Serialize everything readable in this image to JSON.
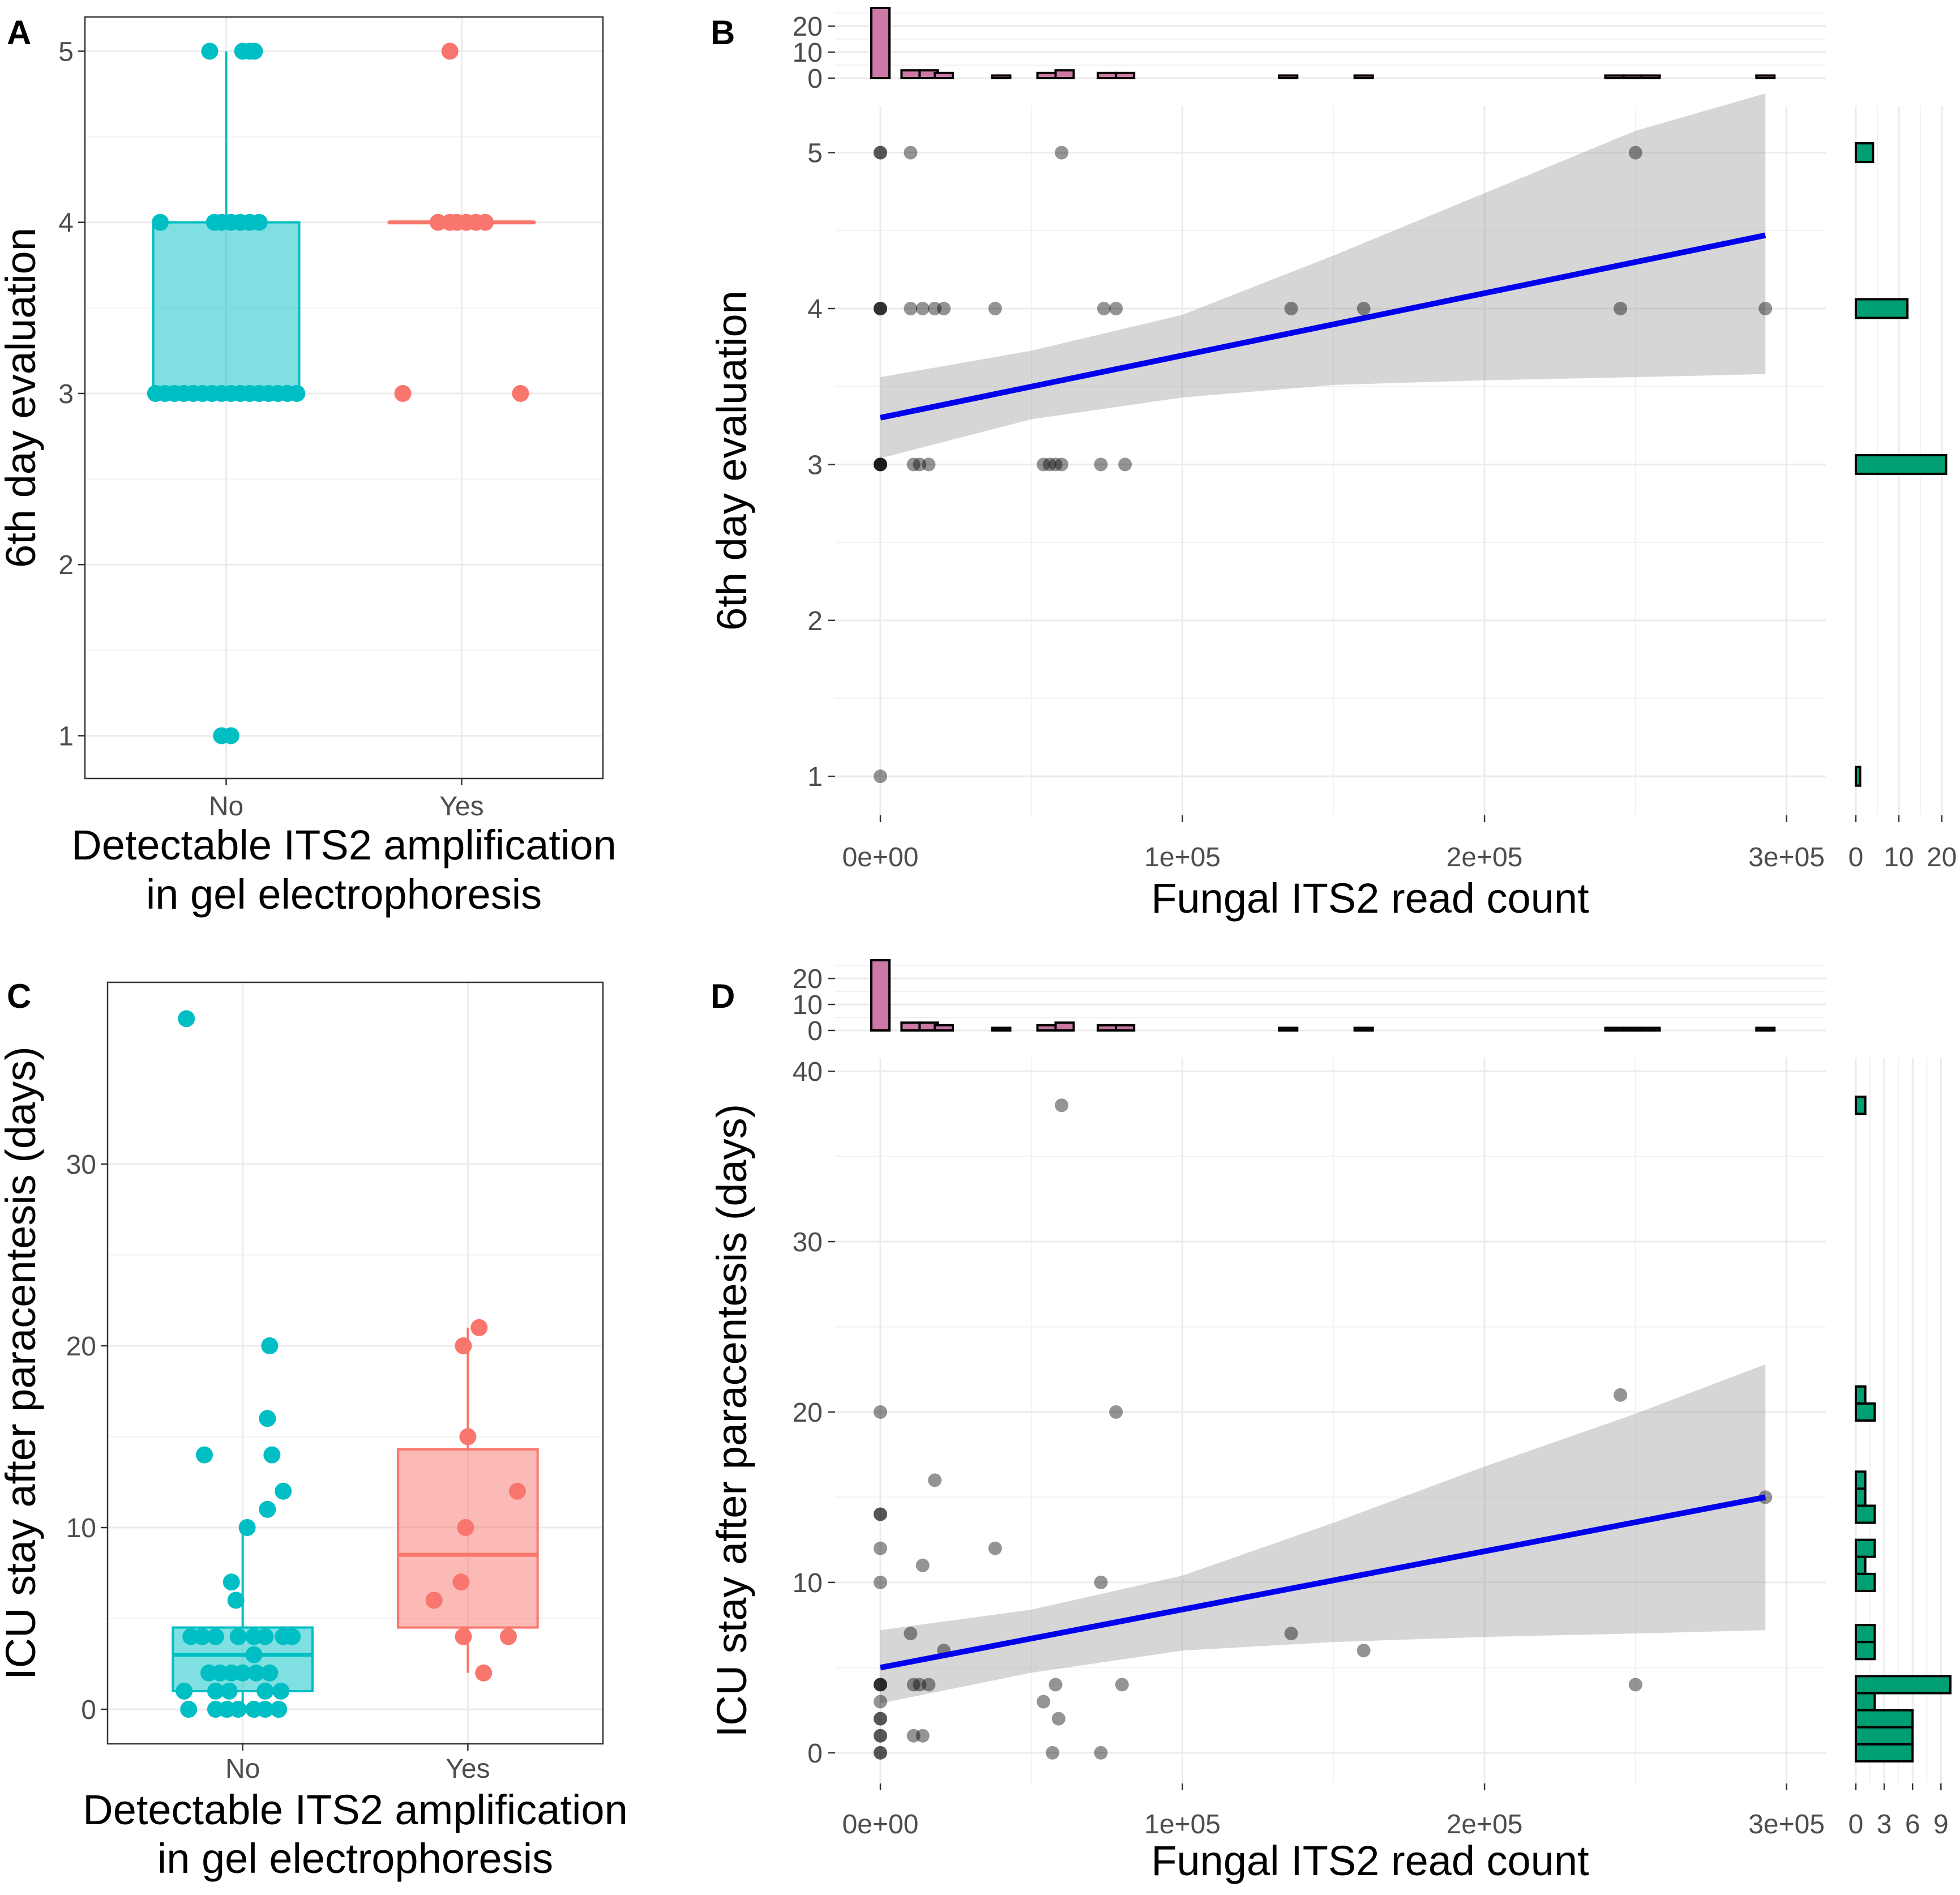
{
  "chart_data": [
    {
      "panel": "A",
      "type": "box",
      "xlabel": "Detectable ITS2 amplification\nin gel electrophoresis",
      "ylabel": "6th day evaluation",
      "categories": [
        "No",
        "Yes"
      ],
      "ylim": [
        0.75,
        5.2
      ],
      "yticks": [
        1,
        2,
        3,
        4,
        5
      ],
      "colors": {
        "No": "#00BFC4",
        "Yes": "#F8766D"
      },
      "boxes": [
        {
          "group": "No",
          "lower_whisker": 3,
          "q1": 3,
          "median": 3,
          "q3": 4,
          "upper_whisker": 5
        },
        {
          "group": "Yes",
          "lower_whisker": 4,
          "q1": 4,
          "median": 4,
          "q3": 4,
          "upper_whisker": 4
        }
      ],
      "points": [
        {
          "group": "No",
          "jitter": [
            -0.07,
            0.07,
            0.1,
            0.12
          ],
          "y": 5
        },
        {
          "group": "No",
          "jitter": [
            -0.28,
            -0.05,
            -0.02,
            0.02,
            0.06,
            0.1,
            0.14
          ],
          "y": 4
        },
        {
          "group": "No",
          "jitter": [
            -0.3,
            -0.26,
            -0.22,
            -0.18,
            -0.14,
            -0.1,
            -0.06,
            -0.02,
            0.02,
            0.06,
            0.1,
            0.14,
            0.18,
            0.22,
            0.26,
            0.3
          ],
          "y": 3
        },
        {
          "group": "No",
          "jitter": [
            -0.02,
            0.02
          ],
          "y": 1
        },
        {
          "group": "Yes",
          "jitter": [
            -0.05
          ],
          "y": 5
        },
        {
          "group": "Yes",
          "jitter": [
            -0.1,
            -0.05,
            -0.02,
            0.02,
            0.06,
            0.1
          ],
          "y": 4
        },
        {
          "group": "Yes",
          "jitter": [
            -0.25,
            0.25
          ],
          "y": 3
        }
      ]
    },
    {
      "panel": "B",
      "type": "scatter",
      "xlabel": "Fungal ITS2 read count",
      "ylabel": "6th day evaluation",
      "xlim": [
        -15000,
        313000
      ],
      "ylim": [
        0.75,
        5.3
      ],
      "xticks": [
        0,
        100000,
        200000,
        300000
      ],
      "xtick_labels": [
        "0e+00",
        "1e+05",
        "2e+05",
        "3e+05"
      ],
      "yticks": [
        1,
        2,
        3,
        4,
        5
      ],
      "points": [
        {
          "x": 0,
          "y": 5
        },
        {
          "x": 0,
          "y": 5
        },
        {
          "x": 10000,
          "y": 5
        },
        {
          "x": 60000,
          "y": 5
        },
        {
          "x": 250000,
          "y": 5
        },
        {
          "x": 0,
          "y": 4
        },
        {
          "x": 0,
          "y": 4
        },
        {
          "x": 0,
          "y": 4
        },
        {
          "x": 10000,
          "y": 4
        },
        {
          "x": 14000,
          "y": 4
        },
        {
          "x": 18000,
          "y": 4
        },
        {
          "x": 21000,
          "y": 4
        },
        {
          "x": 38000,
          "y": 4
        },
        {
          "x": 74000,
          "y": 4
        },
        {
          "x": 78000,
          "y": 4
        },
        {
          "x": 136000,
          "y": 4
        },
        {
          "x": 160000,
          "y": 4
        },
        {
          "x": 245000,
          "y": 4
        },
        {
          "x": 293000,
          "y": 4
        },
        {
          "x": 0,
          "y": 3
        },
        {
          "x": 0,
          "y": 3
        },
        {
          "x": 0,
          "y": 3
        },
        {
          "x": 0,
          "y": 3
        },
        {
          "x": 11000,
          "y": 3
        },
        {
          "x": 13000,
          "y": 3
        },
        {
          "x": 16000,
          "y": 3
        },
        {
          "x": 54000,
          "y": 3
        },
        {
          "x": 56000,
          "y": 3
        },
        {
          "x": 58000,
          "y": 3
        },
        {
          "x": 60000,
          "y": 3
        },
        {
          "x": 73000,
          "y": 3
        },
        {
          "x": 81000,
          "y": 3
        },
        {
          "x": 0,
          "y": 1
        }
      ],
      "fit": {
        "x": [
          0,
          293000
        ],
        "y": [
          3.3,
          4.47
        ],
        "color": "#0000EE"
      },
      "ci_band": {
        "x": [
          0,
          50000,
          100000,
          150000,
          200000,
          250000,
          293000
        ],
        "upper": [
          3.56,
          3.73,
          3.96,
          4.34,
          4.74,
          5.14,
          5.38
        ],
        "lower": [
          3.04,
          3.29,
          3.43,
          3.51,
          3.54,
          3.56,
          3.58
        ]
      },
      "top_histogram": {
        "color": "#CC79A7",
        "bins": [
          {
            "x": 0,
            "count": 27
          },
          {
            "x": 10000,
            "count": 3
          },
          {
            "x": 16000,
            "count": 3
          },
          {
            "x": 21000,
            "count": 2
          },
          {
            "x": 40000,
            "count": 1
          },
          {
            "x": 55000,
            "count": 2
          },
          {
            "x": 61000,
            "count": 3
          },
          {
            "x": 75000,
            "count": 2
          },
          {
            "x": 81000,
            "count": 2
          },
          {
            "x": 135000,
            "count": 1
          },
          {
            "x": 160000,
            "count": 1
          },
          {
            "x": 243000,
            "count": 1
          },
          {
            "x": 249000,
            "count": 1
          },
          {
            "x": 255000,
            "count": 1
          },
          {
            "x": 293000,
            "count": 1
          }
        ],
        "bin_width": 6000,
        "yticks": [
          0,
          10,
          20
        ],
        "ymax": 27
      },
      "right_histogram": {
        "color": "#009E73",
        "bins": [
          {
            "y": 5,
            "count": 4
          },
          {
            "y": 4,
            "count": 12
          },
          {
            "y": 3,
            "count": 21
          },
          {
            "y": 1,
            "count": 1
          }
        ],
        "bin_height": 0.12,
        "xticks": [
          0,
          10,
          20
        ],
        "xtick_labels": [
          "0",
          "10",
          "20"
        ],
        "xmax": 22
      }
    },
    {
      "panel": "C",
      "type": "box",
      "xlabel": "Detectable ITS2 amplification\nin gel electrophoresis",
      "ylabel": "ICU stay after paracentesis (days)",
      "categories": [
        "No",
        "Yes"
      ],
      "ylim": [
        -1.9,
        40
      ],
      "yticks": [
        0,
        10,
        20,
        30
      ],
      "colors": {
        "No": "#00BFC4",
        "Yes": "#F8766D"
      },
      "boxes": [
        {
          "group": "No",
          "lower_whisker": 0,
          "q1": 1,
          "median": 3,
          "q3": 4.5,
          "upper_whisker": 10
        },
        {
          "group": "Yes",
          "lower_whisker": 2,
          "q1": 4.5,
          "median": 8.5,
          "q3": 14.3,
          "upper_whisker": 21
        }
      ],
      "points": [
        {
          "group": "No",
          "xs": [
            -0.25
          ],
          "y": 38
        },
        {
          "group": "No",
          "xs": [
            0.12
          ],
          "y": 20
        },
        {
          "group": "No",
          "xs": [
            0.11
          ],
          "y": 16
        },
        {
          "group": "No",
          "xs": [
            -0.17,
            0.13
          ],
          "y": 14
        },
        {
          "group": "No",
          "xs": [
            0.18
          ],
          "y": 12
        },
        {
          "group": "No",
          "xs": [
            0.11
          ],
          "y": 11
        },
        {
          "group": "No",
          "xs": [
            0.02
          ],
          "y": 10
        },
        {
          "group": "No",
          "xs": [
            -0.05
          ],
          "y": 7
        },
        {
          "group": "No",
          "xs": [
            -0.03
          ],
          "y": 6
        },
        {
          "group": "No",
          "xs": [
            -0.23,
            -0.18,
            -0.12,
            -0.02,
            0.05,
            0.1,
            0.18,
            0.22
          ],
          "y": 4
        },
        {
          "group": "No",
          "xs": [
            0.05
          ],
          "y": 3
        },
        {
          "group": "No",
          "xs": [
            -0.15,
            -0.1,
            -0.05,
            0.0,
            0.06,
            0.12
          ],
          "y": 2
        },
        {
          "group": "No",
          "xs": [
            -0.26,
            -0.12,
            -0.06,
            0.1,
            0.17
          ],
          "y": 1
        },
        {
          "group": "No",
          "xs": [
            -0.24,
            -0.12,
            -0.07,
            -0.02,
            0.05,
            0.1,
            0.16
          ],
          "y": 0
        },
        {
          "group": "Yes",
          "xs": [
            0.05
          ],
          "y": 21
        },
        {
          "group": "Yes",
          "xs": [
            -0.02
          ],
          "y": 20
        },
        {
          "group": "Yes",
          "xs": [
            0.0
          ],
          "y": 15
        },
        {
          "group": "Yes",
          "xs": [
            0.22
          ],
          "y": 12
        },
        {
          "group": "Yes",
          "xs": [
            -0.01
          ],
          "y": 10
        },
        {
          "group": "Yes",
          "xs": [
            -0.03
          ],
          "y": 7
        },
        {
          "group": "Yes",
          "xs": [
            -0.15
          ],
          "y": 6
        },
        {
          "group": "Yes",
          "xs": [
            -0.02,
            0.18
          ],
          "y": 4
        },
        {
          "group": "Yes",
          "xs": [
            0.07
          ],
          "y": 2
        }
      ]
    },
    {
      "panel": "D",
      "type": "scatter",
      "xlabel": "Fungal ITS2 read count",
      "ylabel": "ICU stay after paracentesis (days)",
      "xlim": [
        -15000,
        313000
      ],
      "ylim": [
        -1.8,
        40.8
      ],
      "xticks": [
        0,
        100000,
        200000,
        300000
      ],
      "xtick_labels": [
        "0e+00",
        "1e+05",
        "2e+05",
        "3e+05"
      ],
      "yticks": [
        0,
        10,
        20,
        30,
        40
      ],
      "points": [
        {
          "x": 60000,
          "y": 38
        },
        {
          "x": 0,
          "y": 20
        },
        {
          "x": 78000,
          "y": 20
        },
        {
          "x": 245000,
          "y": 21
        },
        {
          "x": 18000,
          "y": 16
        },
        {
          "x": 293000,
          "y": 15
        },
        {
          "x": 0,
          "y": 14
        },
        {
          "x": 0,
          "y": 14
        },
        {
          "x": 0,
          "y": 12
        },
        {
          "x": 38000,
          "y": 12
        },
        {
          "x": 14000,
          "y": 11
        },
        {
          "x": 0,
          "y": 10
        },
        {
          "x": 73000,
          "y": 10
        },
        {
          "x": 10000,
          "y": 7
        },
        {
          "x": 136000,
          "y": 7
        },
        {
          "x": 21000,
          "y": 6
        },
        {
          "x": 160000,
          "y": 6
        },
        {
          "x": 0,
          "y": 4
        },
        {
          "x": 0,
          "y": 4
        },
        {
          "x": 0,
          "y": 4
        },
        {
          "x": 11000,
          "y": 4
        },
        {
          "x": 13000,
          "y": 4
        },
        {
          "x": 16000,
          "y": 4
        },
        {
          "x": 58000,
          "y": 4
        },
        {
          "x": 80000,
          "y": 4
        },
        {
          "x": 250000,
          "y": 4
        },
        {
          "x": 0,
          "y": 3
        },
        {
          "x": 54000,
          "y": 3
        },
        {
          "x": 0,
          "y": 2
        },
        {
          "x": 0,
          "y": 2
        },
        {
          "x": 59000,
          "y": 2
        },
        {
          "x": 0,
          "y": 1
        },
        {
          "x": 0,
          "y": 1
        },
        {
          "x": 11000,
          "y": 1
        },
        {
          "x": 14000,
          "y": 1
        },
        {
          "x": 0,
          "y": 0
        },
        {
          "x": 0,
          "y": 0
        },
        {
          "x": 57000,
          "y": 0
        },
        {
          "x": 73000,
          "y": 0
        }
      ],
      "fit": {
        "x": [
          0,
          293000
        ],
        "y": [
          5.0,
          15.0
        ],
        "color": "#0000EE"
      },
      "ci_band": {
        "x": [
          0,
          50000,
          100000,
          150000,
          200000,
          250000,
          293000
        ],
        "upper": [
          7.2,
          8.4,
          10.4,
          13.5,
          16.8,
          19.9,
          22.8
        ],
        "lower": [
          2.9,
          4.7,
          6.0,
          6.5,
          6.8,
          7.0,
          7.2
        ]
      },
      "top_histogram": {
        "color": "#CC79A7",
        "bins": [
          {
            "x": 0,
            "count": 27
          },
          {
            "x": 10000,
            "count": 3
          },
          {
            "x": 16000,
            "count": 3
          },
          {
            "x": 21000,
            "count": 2
          },
          {
            "x": 40000,
            "count": 1
          },
          {
            "x": 55000,
            "count": 2
          },
          {
            "x": 61000,
            "count": 3
          },
          {
            "x": 75000,
            "count": 2
          },
          {
            "x": 81000,
            "count": 2
          },
          {
            "x": 135000,
            "count": 1
          },
          {
            "x": 160000,
            "count": 1
          },
          {
            "x": 243000,
            "count": 1
          },
          {
            "x": 249000,
            "count": 1
          },
          {
            "x": 255000,
            "count": 1
          },
          {
            "x": 293000,
            "count": 1
          }
        ],
        "bin_width": 6000,
        "yticks": [
          0,
          10,
          20
        ],
        "ymax": 27
      },
      "right_histogram": {
        "color": "#009E73",
        "bins": [
          {
            "y": 38,
            "count": 1
          },
          {
            "y": 21,
            "count": 1
          },
          {
            "y": 20,
            "count": 2
          },
          {
            "y": 16,
            "count": 1
          },
          {
            "y": 15,
            "count": 1
          },
          {
            "y": 14,
            "count": 2
          },
          {
            "y": 12,
            "count": 2
          },
          {
            "y": 11,
            "count": 1
          },
          {
            "y": 10,
            "count": 2
          },
          {
            "y": 7,
            "count": 2
          },
          {
            "y": 6,
            "count": 2
          },
          {
            "y": 4,
            "count": 10
          },
          {
            "y": 3,
            "count": 2
          },
          {
            "y": 2,
            "count": 6
          },
          {
            "y": 1,
            "count": 6
          },
          {
            "y": 0,
            "count": 6
          }
        ],
        "bin_height": 1,
        "xticks": [
          0,
          3,
          6,
          9
        ],
        "xtick_labels": [
          "0",
          "3",
          "6",
          "9"
        ],
        "xmax": 10
      }
    }
  ]
}
